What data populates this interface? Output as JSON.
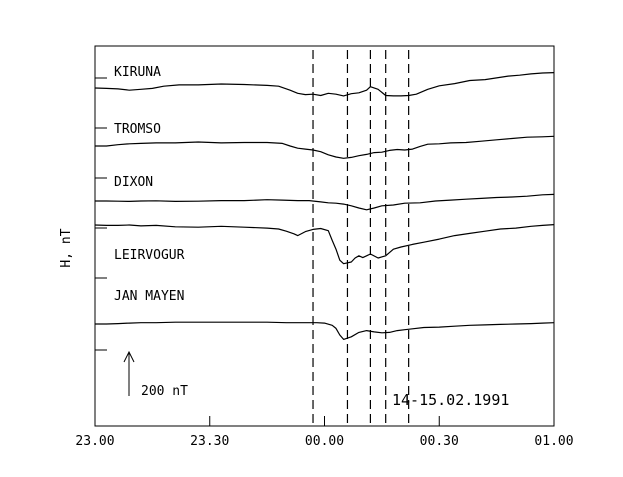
{
  "chart_data": {
    "type": "line",
    "ylabel": "H, nT",
    "date_label": "14-15.02.1991",
    "scale_label": "200 nT",
    "scale_nT": 200,
    "x_ticks": [
      "23.00",
      "23.30",
      "00.00",
      "00.30",
      "01.00"
    ],
    "x_range_min": [
      0,
      120
    ],
    "event_lines_min": [
      57,
      66,
      72,
      76,
      82
    ],
    "series": [
      {
        "name": "KIRUNA",
        "points": [
          [
            0,
            0
          ],
          [
            3,
            -2
          ],
          [
            6,
            -4
          ],
          [
            9,
            -10
          ],
          [
            12,
            -6
          ],
          [
            15,
            -2
          ],
          [
            18,
            8
          ],
          [
            22,
            14
          ],
          [
            27,
            14
          ],
          [
            33,
            18
          ],
          [
            39,
            16
          ],
          [
            45,
            12
          ],
          [
            48,
            8
          ],
          [
            51,
            -10
          ],
          [
            53,
            -24
          ],
          [
            55,
            -30
          ],
          [
            57,
            -28
          ],
          [
            59,
            -34
          ],
          [
            61,
            -24
          ],
          [
            63,
            -28
          ],
          [
            65,
            -36
          ],
          [
            67,
            -26
          ],
          [
            69,
            -22
          ],
          [
            71,
            -10
          ],
          [
            72,
            6
          ],
          [
            74,
            -6
          ],
          [
            76,
            -34
          ],
          [
            78,
            -36
          ],
          [
            80,
            -36
          ],
          [
            82,
            -34
          ],
          [
            84,
            -28
          ],
          [
            87,
            -6
          ],
          [
            90,
            10
          ],
          [
            94,
            20
          ],
          [
            98,
            34
          ],
          [
            102,
            38
          ],
          [
            105,
            46
          ],
          [
            108,
            54
          ],
          [
            111,
            58
          ],
          [
            114,
            64
          ],
          [
            117,
            68
          ],
          [
            120,
            70
          ]
        ]
      },
      {
        "name": "TROMSO",
        "points": [
          [
            0,
            0
          ],
          [
            3,
            0
          ],
          [
            6,
            6
          ],
          [
            9,
            10
          ],
          [
            12,
            12
          ],
          [
            16,
            14
          ],
          [
            21,
            14
          ],
          [
            27,
            18
          ],
          [
            33,
            14
          ],
          [
            39,
            16
          ],
          [
            45,
            16
          ],
          [
            49,
            12
          ],
          [
            51,
            0
          ],
          [
            53,
            -10
          ],
          [
            55,
            -14
          ],
          [
            57,
            -18
          ],
          [
            59,
            -26
          ],
          [
            61,
            -40
          ],
          [
            63,
            -50
          ],
          [
            65,
            -56
          ],
          [
            67,
            -52
          ],
          [
            69,
            -44
          ],
          [
            71,
            -38
          ],
          [
            73,
            -30
          ],
          [
            75,
            -28
          ],
          [
            77,
            -20
          ],
          [
            79,
            -16
          ],
          [
            81,
            -18
          ],
          [
            83,
            -14
          ],
          [
            85,
            -2
          ],
          [
            87,
            8
          ],
          [
            90,
            10
          ],
          [
            93,
            14
          ],
          [
            97,
            16
          ],
          [
            101,
            22
          ],
          [
            105,
            28
          ],
          [
            109,
            34
          ],
          [
            113,
            40
          ],
          [
            117,
            42
          ],
          [
            120,
            44
          ]
        ]
      },
      {
        "name": "DIXON",
        "points": [
          [
            0,
            0
          ],
          [
            3,
            0
          ],
          [
            6,
            -1
          ],
          [
            9,
            -2
          ],
          [
            12,
            0
          ],
          [
            16,
            1
          ],
          [
            21,
            -2
          ],
          [
            27,
            -1
          ],
          [
            33,
            2
          ],
          [
            39,
            2
          ],
          [
            45,
            6
          ],
          [
            49,
            4
          ],
          [
            53,
            2
          ],
          [
            56,
            2
          ],
          [
            59,
            -4
          ],
          [
            61,
            -8
          ],
          [
            63,
            -10
          ],
          [
            65,
            -14
          ],
          [
            67,
            -22
          ],
          [
            69,
            -32
          ],
          [
            71,
            -40
          ],
          [
            73,
            -32
          ],
          [
            75,
            -22
          ],
          [
            78,
            -18
          ],
          [
            81,
            -10
          ],
          [
            85,
            -8
          ],
          [
            89,
            0
          ],
          [
            93,
            4
          ],
          [
            97,
            8
          ],
          [
            101,
            12
          ],
          [
            105,
            16
          ],
          [
            109,
            18
          ],
          [
            113,
            22
          ],
          [
            117,
            28
          ],
          [
            120,
            30
          ]
        ]
      },
      {
        "name": "LEIRVOGUR",
        "points": [
          [
            0,
            0
          ],
          [
            3,
            -2
          ],
          [
            6,
            -2
          ],
          [
            9,
            0
          ],
          [
            12,
            -4
          ],
          [
            16,
            -2
          ],
          [
            21,
            -8
          ],
          [
            27,
            -10
          ],
          [
            33,
            -6
          ],
          [
            39,
            -10
          ],
          [
            45,
            -14
          ],
          [
            48,
            -18
          ],
          [
            50,
            -28
          ],
          [
            52,
            -40
          ],
          [
            53,
            -48
          ],
          [
            55,
            -30
          ],
          [
            57,
            -20
          ],
          [
            59,
            -16
          ],
          [
            61,
            -26
          ],
          [
            62,
            -70
          ],
          [
            63,
            -110
          ],
          [
            64,
            -160
          ],
          [
            65,
            -176
          ],
          [
            67,
            -168
          ],
          [
            68,
            -150
          ],
          [
            69,
            -140
          ],
          [
            70,
            -148
          ],
          [
            71,
            -140
          ],
          [
            72,
            -132
          ],
          [
            74,
            -150
          ],
          [
            76,
            -140
          ],
          [
            78,
            -110
          ],
          [
            80,
            -100
          ],
          [
            83,
            -88
          ],
          [
            86,
            -78
          ],
          [
            90,
            -64
          ],
          [
            94,
            -48
          ],
          [
            98,
            -38
          ],
          [
            102,
            -28
          ],
          [
            106,
            -18
          ],
          [
            110,
            -14
          ],
          [
            114,
            -6
          ],
          [
            117,
            -2
          ],
          [
            120,
            2
          ]
        ]
      },
      {
        "name": "JAN MAYEN",
        "points": [
          [
            0,
            0
          ],
          [
            3,
            0
          ],
          [
            6,
            2
          ],
          [
            9,
            4
          ],
          [
            12,
            6
          ],
          [
            16,
            6
          ],
          [
            21,
            8
          ],
          [
            27,
            8
          ],
          [
            33,
            8
          ],
          [
            39,
            8
          ],
          [
            45,
            8
          ],
          [
            50,
            6
          ],
          [
            55,
            6
          ],
          [
            58,
            6
          ],
          [
            60,
            4
          ],
          [
            62,
            -6
          ],
          [
            63,
            -20
          ],
          [
            64,
            -50
          ],
          [
            65,
            -70
          ],
          [
            67,
            -58
          ],
          [
            69,
            -38
          ],
          [
            71,
            -30
          ],
          [
            73,
            -36
          ],
          [
            75,
            -40
          ],
          [
            77,
            -38
          ],
          [
            79,
            -30
          ],
          [
            81,
            -26
          ],
          [
            83,
            -22
          ],
          [
            86,
            -16
          ],
          [
            90,
            -14
          ],
          [
            94,
            -10
          ],
          [
            98,
            -6
          ],
          [
            102,
            -4
          ],
          [
            106,
            -2
          ],
          [
            110,
            0
          ],
          [
            114,
            2
          ],
          [
            117,
            4
          ],
          [
            120,
            6
          ]
        ]
      }
    ]
  }
}
